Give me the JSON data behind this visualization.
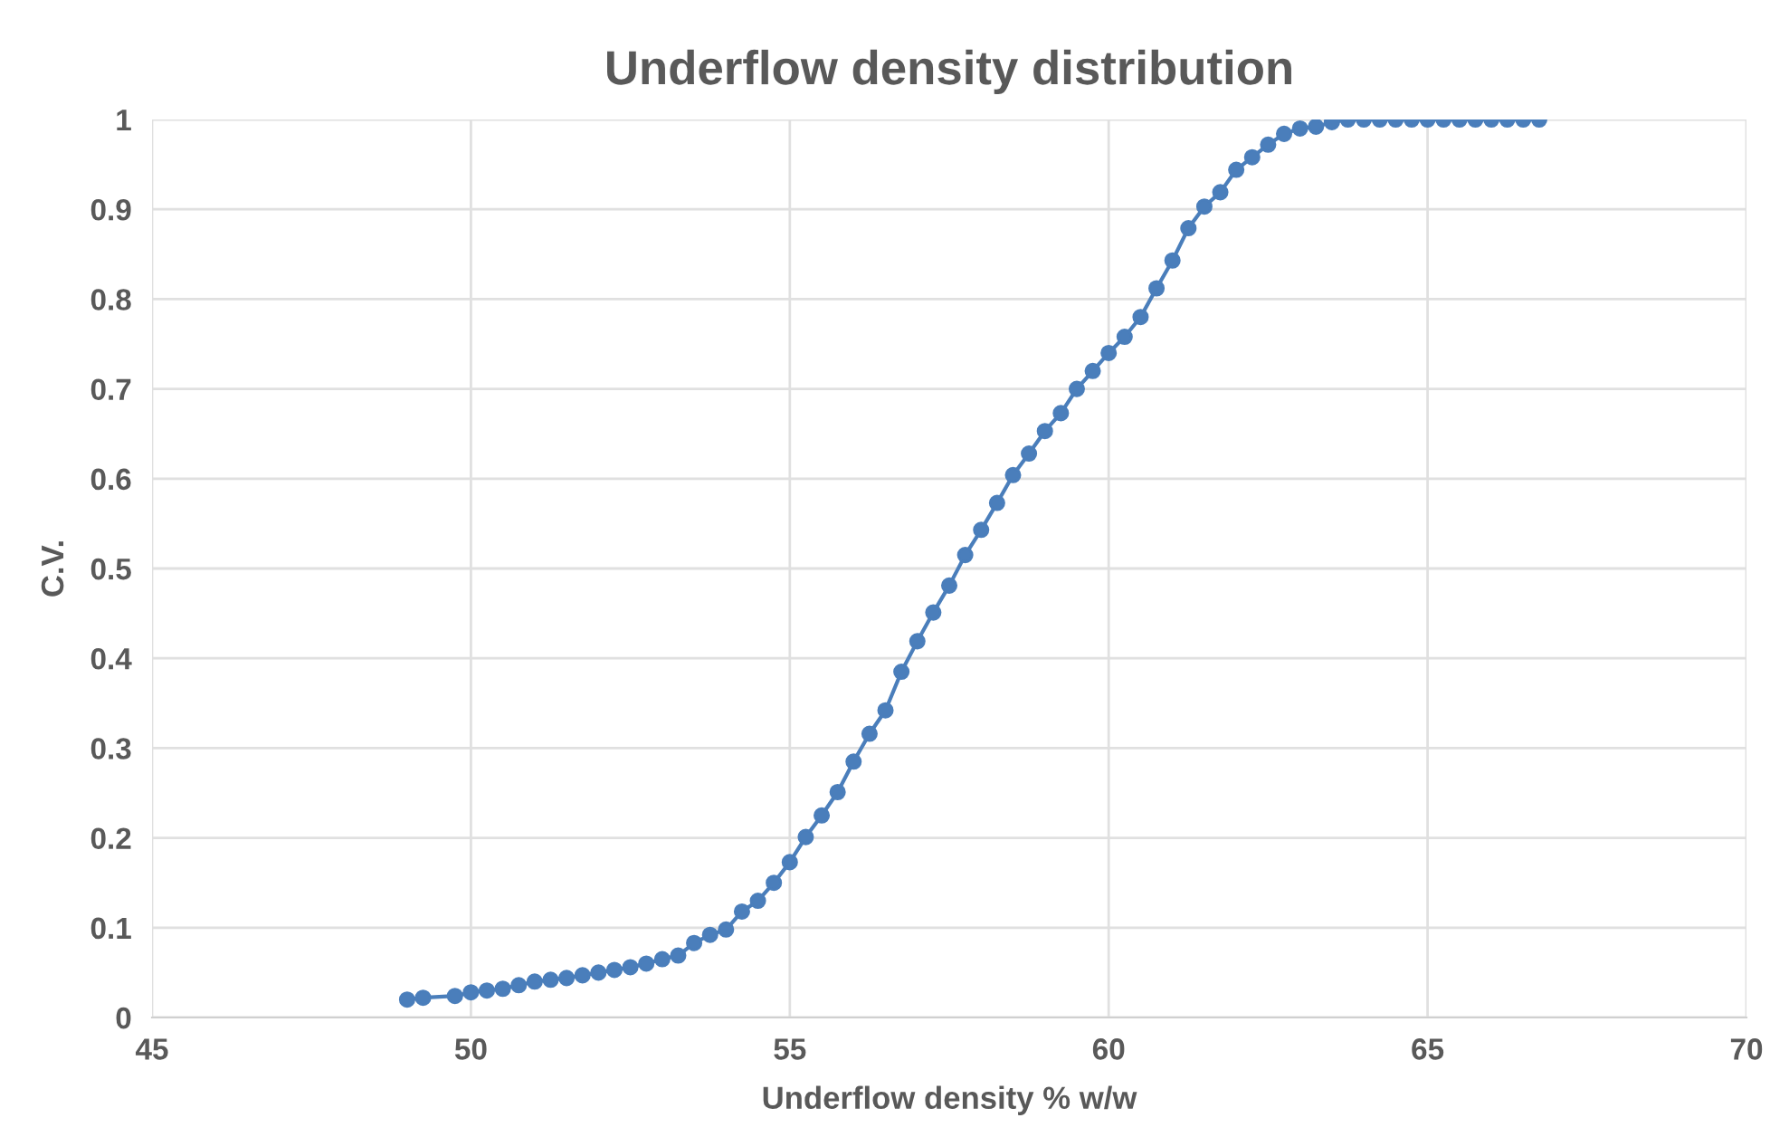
{
  "chart_data": {
    "type": "line",
    "title": "Underflow density distribution",
    "xlabel": "Underflow density % w/w",
    "ylabel": "C.V.",
    "xlim": [
      45,
      70
    ],
    "xticks": [
      45,
      50,
      55,
      60,
      65,
      70
    ],
    "ylim": [
      0,
      1
    ],
    "yticks": [
      0,
      0.1,
      0.2,
      0.3,
      0.4,
      0.5,
      0.6,
      0.7,
      0.8,
      0.9,
      1
    ],
    "grid": true,
    "marker": "circle",
    "line_style": "solid",
    "series": [
      {
        "color": "#4a7ebb",
        "x": [
          49.0,
          49.25,
          49.75,
          50.0,
          50.25,
          50.5,
          50.75,
          51.0,
          51.25,
          51.5,
          51.75,
          52.0,
          52.25,
          52.5,
          52.75,
          53.0,
          53.25,
          53.5,
          53.75,
          54.0,
          54.25,
          54.5,
          54.75,
          55.0,
          55.25,
          55.5,
          55.75,
          56.0,
          56.25,
          56.5,
          56.75,
          57.0,
          57.25,
          57.5,
          57.75,
          58.0,
          58.25,
          58.5,
          58.75,
          59.0,
          59.25,
          59.5,
          59.75,
          60.0,
          60.25,
          60.5,
          60.75,
          61.0,
          61.25,
          61.5,
          61.75,
          62.0,
          62.25,
          62.5,
          62.75,
          63.0,
          63.25,
          63.5,
          63.75,
          64.0,
          64.25,
          64.5,
          64.75,
          65.0,
          65.25,
          65.5,
          65.75,
          66.0,
          66.25,
          66.5,
          66.75
        ],
        "values": [
          0.02,
          0.022,
          0.024,
          0.028,
          0.03,
          0.032,
          0.036,
          0.04,
          0.042,
          0.044,
          0.047,
          0.05,
          0.053,
          0.056,
          0.06,
          0.065,
          0.069,
          0.083,
          0.092,
          0.098,
          0.118,
          0.13,
          0.15,
          0.173,
          0.201,
          0.225,
          0.251,
          0.285,
          0.316,
          0.342,
          0.385,
          0.419,
          0.451,
          0.481,
          0.515,
          0.543,
          0.573,
          0.604,
          0.628,
          0.653,
          0.673,
          0.7,
          0.72,
          0.74,
          0.758,
          0.78,
          0.812,
          0.843,
          0.879,
          0.903,
          0.919,
          0.944,
          0.958,
          0.972,
          0.984,
          0.99,
          0.992,
          0.997,
          1,
          1,
          1,
          1,
          1,
          1,
          1,
          1,
          1,
          1,
          1,
          1,
          1
        ]
      }
    ]
  }
}
